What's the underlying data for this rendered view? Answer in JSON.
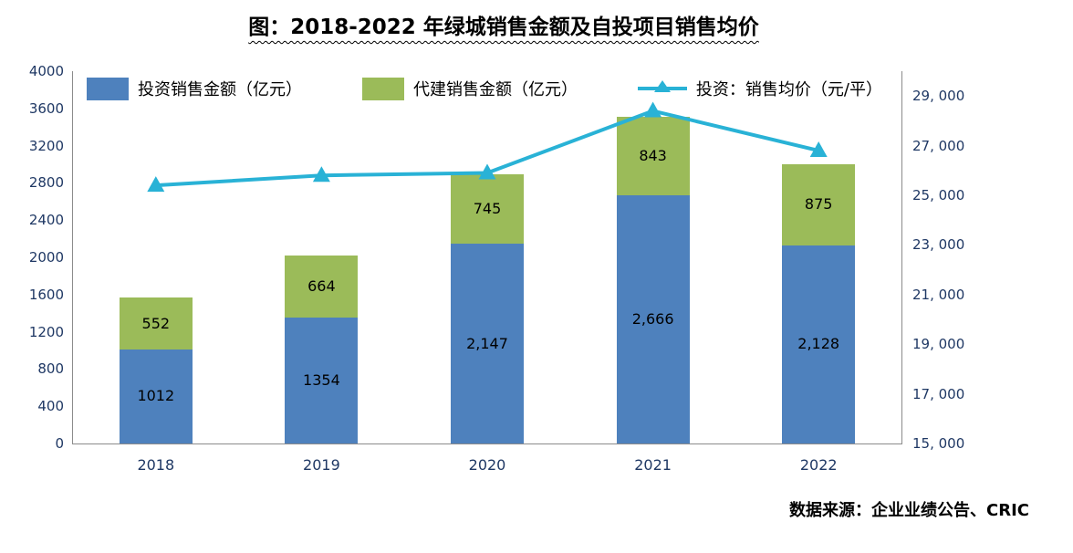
{
  "title": "图：2018-2022 年绿城销售金额及自投项目销售均价",
  "source": "数据来源：企业业绩公告、CRIC",
  "colors": {
    "invest_bar": "#4e81bd",
    "daijian_bar": "#9bbb59",
    "price_line": "#29b2d6",
    "axis_text": "#1f3864"
  },
  "legend": [
    {
      "label": "投资销售金额（亿元）",
      "type": "bar",
      "color": "#4e81bd"
    },
    {
      "label": "代建销售金额（亿元）",
      "type": "bar",
      "color": "#9bbb59"
    },
    {
      "label": "投资：销售均价（元/平）",
      "type": "line",
      "color": "#29b2d6"
    }
  ],
  "chart_data": {
    "type": "bar",
    "subtype": "stacked-bar-with-line-combo",
    "categories": [
      "2018",
      "2019",
      "2020",
      "2021",
      "2022"
    ],
    "series": [
      {
        "name": "投资销售金额（亿元）",
        "type": "bar",
        "axis": "left",
        "color": "#4e81bd",
        "values": [
          1012,
          1354,
          2147,
          2666,
          2128
        ],
        "labels": [
          "1012",
          "1354",
          "2,147",
          "2,666",
          "2,128"
        ]
      },
      {
        "name": "代建销售金额（亿元）",
        "type": "bar",
        "axis": "left",
        "color": "#9bbb59",
        "values": [
          552,
          664,
          745,
          843,
          875
        ],
        "labels": [
          "552",
          "664",
          "745",
          "843",
          "875"
        ]
      },
      {
        "name": "投资：销售均价（元/平）",
        "type": "line",
        "axis": "right",
        "color": "#29b2d6",
        "values": [
          25400,
          25800,
          25900,
          28400,
          26800
        ]
      }
    ],
    "left_axis": {
      "min": 0,
      "scale_max": 4000,
      "step": 400,
      "tick_labels": [
        "0",
        "400",
        "800",
        "1200",
        "1600",
        "2000",
        "2400",
        "2800",
        "3200",
        "3600",
        "4000"
      ]
    },
    "right_axis": {
      "min": 15000,
      "scale_max": 30000,
      "step": 2000,
      "tick_labels": [
        "15, 000",
        "17, 000",
        "19, 000",
        "21, 000",
        "23, 000",
        "25, 000",
        "27, 000",
        "29, 000"
      ]
    },
    "grid": false,
    "legend_position": "top"
  }
}
